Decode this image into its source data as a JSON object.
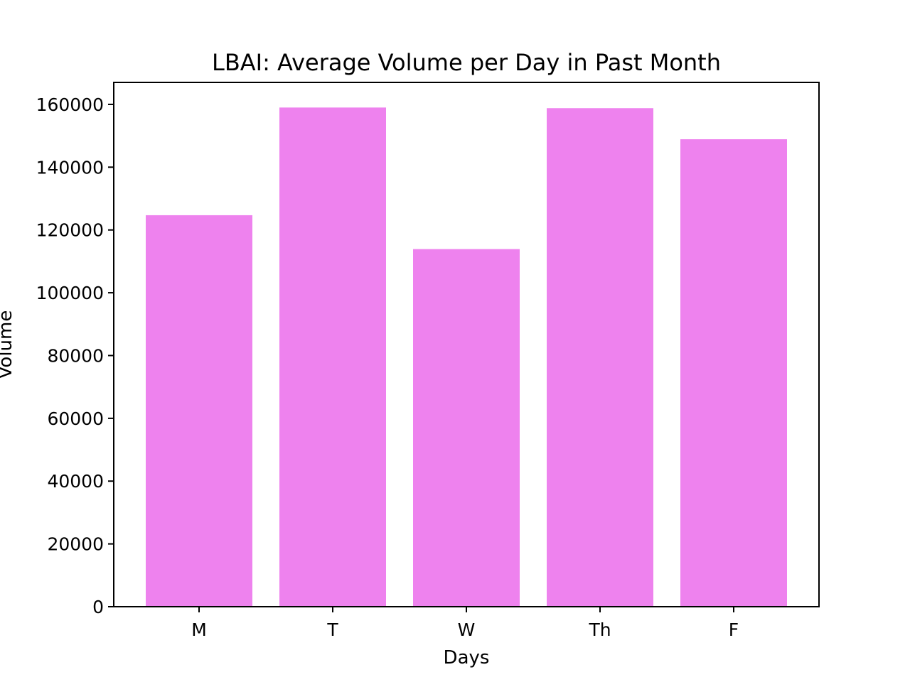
{
  "chart_data": {
    "type": "bar",
    "title": "LBAI: Average Volume per Day in Past Month",
    "xlabel": "Days",
    "ylabel": "Volume",
    "categories": [
      "M",
      "T",
      "W",
      "Th",
      "F"
    ],
    "values": [
      124700,
      159000,
      113900,
      158800,
      148900
    ],
    "ylim": [
      0,
      167000
    ],
    "yticks": [
      0,
      20000,
      40000,
      60000,
      80000,
      100000,
      120000,
      140000,
      160000
    ],
    "ytick_labels": [
      "0",
      "20000",
      "40000",
      "60000",
      "80000",
      "100000",
      "120000",
      "140000",
      "160000"
    ],
    "bar_color": "#ee82ee",
    "grid": false,
    "legend": "none"
  }
}
